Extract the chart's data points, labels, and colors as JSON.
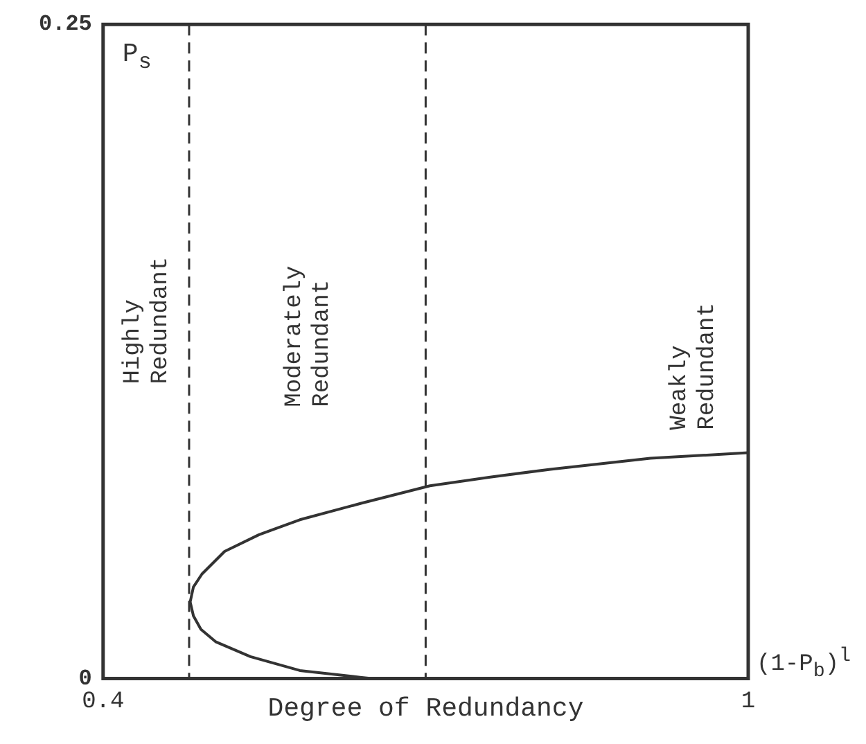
{
  "chart_data": {
    "type": "line",
    "xlabel": "Degree of Redundancy",
    "ylabel": "P$_{s}$",
    "series": [
      {
        "color": "#333333",
        "x": [
          0.65,
          0.639,
          0.583,
          0.537,
          0.505,
          0.491,
          0.484,
          0.481,
          0.484,
          0.492,
          0.513,
          0.545,
          0.583,
          0.64,
          0.704,
          0.76,
          0.816,
          0.909,
          1
        ],
        "values": [
          0,
          0.0005,
          0.0031,
          0.0084,
          0.014,
          0.0188,
          0.024,
          0.0293,
          0.035,
          0.04,
          0.0486,
          0.055,
          0.0607,
          0.067,
          0.0737,
          0.077,
          0.08,
          0.0842,
          0.0863
        ]
      }
    ],
    "xlim": [
      0.4,
      1
    ],
    "xticks": [
      0.4,
      1
    ],
    "ylim": [
      0,
      0.25
    ],
    "yticks": [
      0,
      0.25
    ],
    "ref_lines": [
      {
        "axis": "x",
        "value": 0.48,
        "color": "#333333",
        "line_style": "dashed"
      },
      {
        "axis": "x",
        "value": 0.7,
        "color": "#333333",
        "line_style": "dashed"
      }
    ],
    "annotations": [
      "Highly\nRedundant",
      "Moderately\nRedundant",
      "Weakly\nRedundant",
      "(1-P$_{b}$)$^{l}$"
    ],
    "legend": false,
    "marker": "none",
    "line_style": "solid"
  }
}
